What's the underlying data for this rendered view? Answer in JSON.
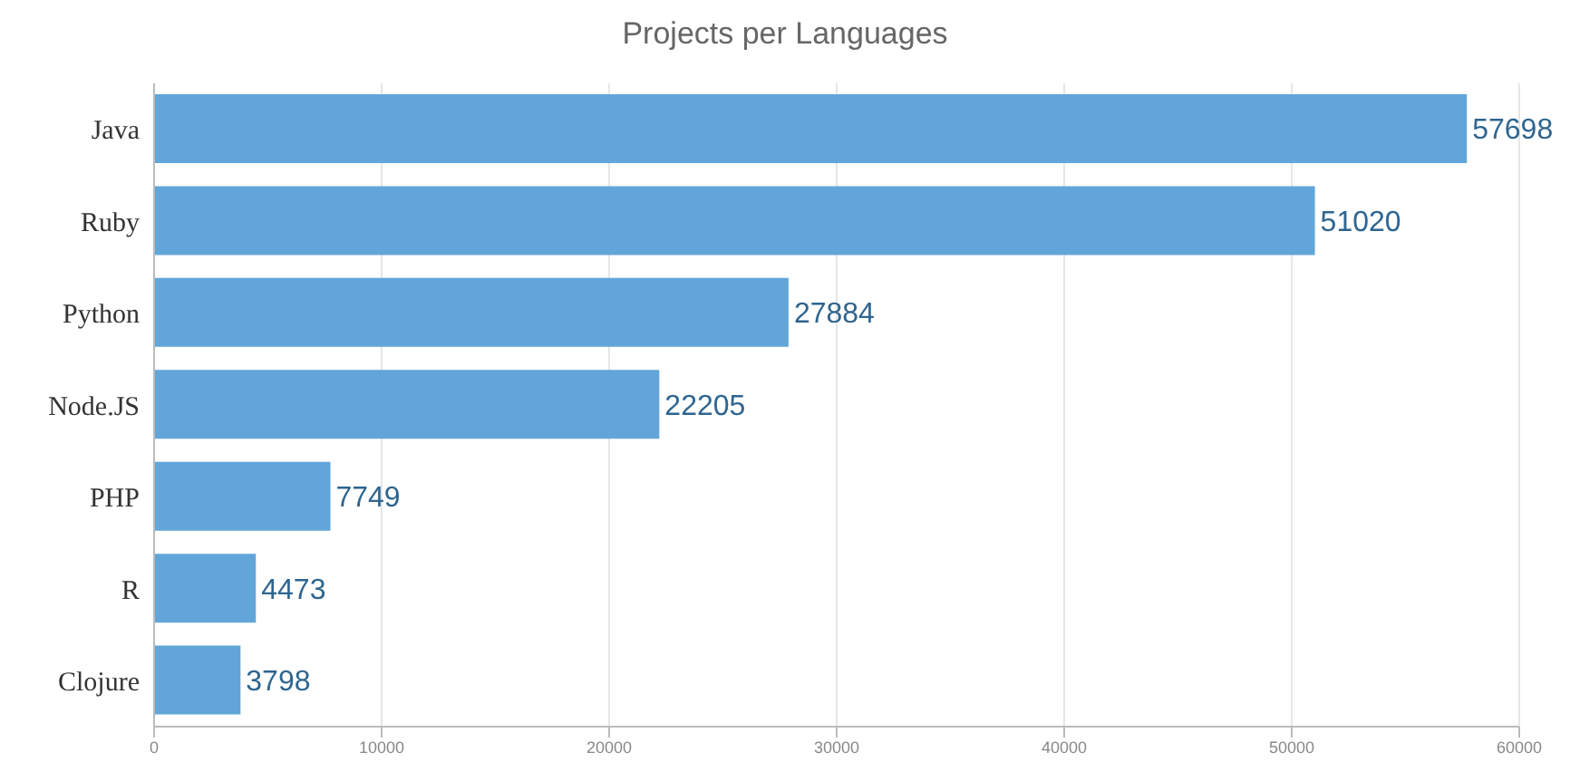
{
  "chart_data": {
    "type": "bar",
    "title": "Projects per Languages",
    "orientation": "horizontal",
    "categories": [
      "Java",
      "Ruby",
      "Python",
      "Node.JS",
      "PHP",
      "R",
      "Clojure"
    ],
    "values": [
      57698,
      51020,
      27884,
      22205,
      7749,
      4473,
      3798
    ],
    "color": "#62a6d9",
    "xlim": [
      0,
      60000
    ],
    "xticks": [
      0,
      10000,
      20000,
      30000,
      40000,
      50000,
      60000
    ],
    "grid": "x",
    "data_labels": true
  }
}
